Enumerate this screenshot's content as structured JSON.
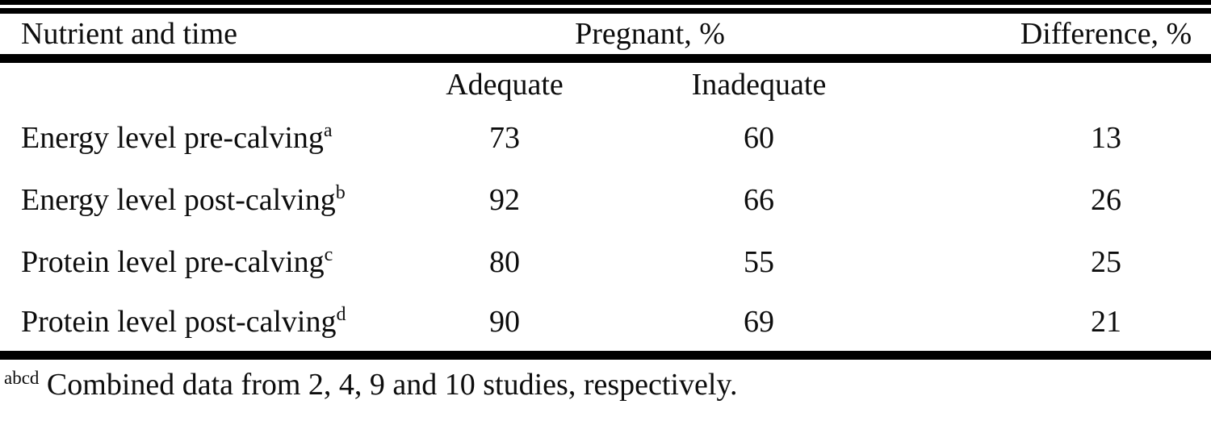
{
  "table": {
    "col1_header": "Nutrient and time",
    "group_header": "Pregnant, %",
    "diff_header": "Difference, %",
    "sub_headers": {
      "adequate": "Adequate",
      "inadequate": "Inadequate"
    },
    "rows": [
      {
        "label": "Energy level pre-calving",
        "sup": "a",
        "adequate": "73",
        "inadequate": "60",
        "difference": "13"
      },
      {
        "label": "Energy level post-calving",
        "sup": "b",
        "adequate": "92",
        "inadequate": "66",
        "difference": "26"
      },
      {
        "label": "Protein level pre-calving",
        "sup": "c",
        "adequate": "80",
        "inadequate": "55",
        "difference": "25"
      },
      {
        "label": "Protein level post-calving",
        "sup": "d",
        "adequate": "90",
        "inadequate": "69",
        "difference": "21"
      }
    ],
    "footnote": {
      "sup": "abcd",
      "text": " Combined data from 2, 4, 9 and 10 studies, respectively."
    }
  },
  "colors": {
    "background": "#ffffff",
    "text": "#0d0d0d",
    "rule": "#000000"
  }
}
